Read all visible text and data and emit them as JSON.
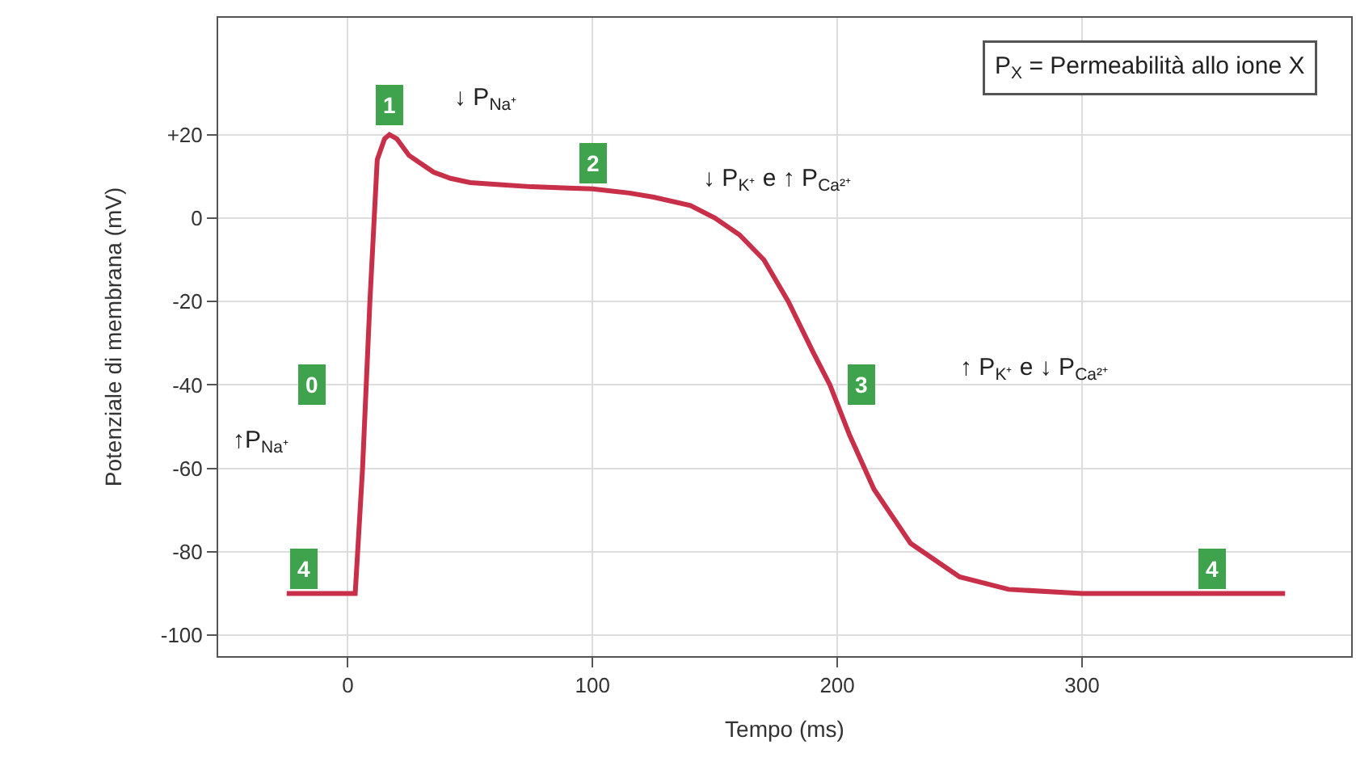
{
  "chart_data": {
    "type": "line",
    "xlabel": "Tempo (ms)",
    "ylabel": "Potenziale di membrana (mV)",
    "xlim": [
      -53,
      410
    ],
    "ylim": [
      -105,
      48
    ],
    "xticks": [
      0,
      100,
      200,
      300
    ],
    "yticks": [
      {
        "value": 20,
        "label": "+20"
      },
      0,
      -20,
      -40,
      -60,
      -80,
      -100
    ],
    "grid": true,
    "marker": "none",
    "line_style": "solid",
    "series": [
      {
        "color": "#c8304a",
        "x": [
          -25,
          0,
          3,
          6,
          9,
          12,
          15,
          17,
          20,
          25,
          30,
          35,
          42,
          50,
          62,
          75,
          90,
          100,
          115,
          125,
          140,
          150,
          160,
          170,
          180,
          190,
          197,
          205,
          215,
          230,
          250,
          270,
          300,
          340,
          383
        ],
        "values": [
          -90,
          -90,
          -90,
          -60,
          -20,
          14,
          19,
          20,
          19,
          15,
          13,
          11,
          9.5,
          8.5,
          8,
          7.5,
          7.2,
          7,
          6,
          5,
          3,
          0,
          -4,
          -10,
          -20,
          -32,
          -40,
          -52,
          -65,
          -78,
          -86,
          -89,
          -90,
          -90,
          -90
        ]
      }
    ],
    "annotations": [
      "P$_{X}$ = Permeabilità allo ione X",
      {
        "text": "0",
        "x": -15,
        "y": -40
      },
      {
        "text": "1",
        "x": 17,
        "y": 27
      },
      {
        "text": "2",
        "x": 100,
        "y": 13
      },
      {
        "text": "3",
        "x": 210,
        "y": -40
      },
      {
        "text": "4",
        "x": -18,
        "y": -84
      },
      {
        "text": "4",
        "x": 353,
        "y": -84
      },
      "↓ P$_{Na⁺}$",
      "↑P$_{Na⁺}$",
      "↓ P$_{K⁺}$ e ↑ P$_{Ca²⁺}$",
      "↑ P$_{K⁺}$ e ↓ P$_{Ca²⁺}$"
    ]
  }
}
